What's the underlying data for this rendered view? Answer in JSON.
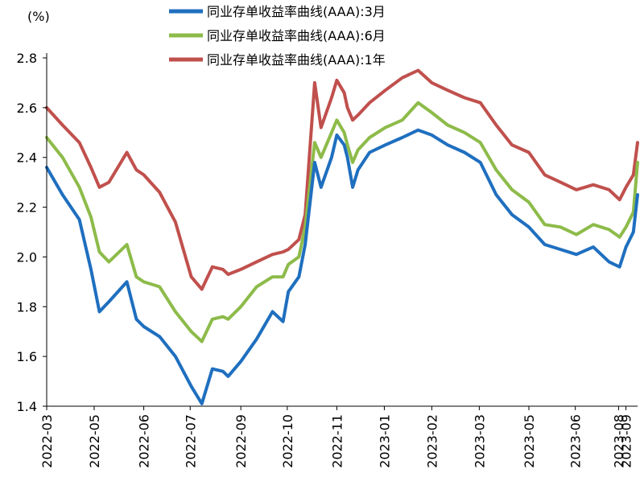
{
  "chart_data": {
    "type": "line",
    "title": "",
    "unit_label": "(%)",
    "xlabel": "",
    "ylabel": "(%)",
    "ylim": [
      1.4,
      2.8
    ],
    "yticks": [
      1.4,
      1.6,
      1.8,
      2.0,
      2.2,
      2.4,
      2.6,
      2.8
    ],
    "ytick_labels": [
      "1.4",
      "1.6",
      "1.8",
      "2.0",
      "2.2",
      "2.4",
      "2.6",
      "2.8"
    ],
    "x_start": "2022-03-01",
    "x_end": "2023-09-12",
    "xtick_labels": [
      "2022-03",
      "2022-05",
      "2022-06",
      "2022-07",
      "2022-09",
      "2022-10",
      "2022-11",
      "2023-01",
      "2023-02",
      "2023-03",
      "2023-05",
      "2023-06",
      "2023-08",
      "2023-09"
    ],
    "xtick_dates": [
      "2022-03-01",
      "2022-04-15",
      "2022-06-01",
      "2022-07-15",
      "2022-09-01",
      "2022-10-15",
      "2022-12-01",
      "2023-01-15",
      "2023-03-01",
      "2023-04-15",
      "2023-06-01",
      "2023-07-15",
      "2023-08-25",
      "2023-09-01"
    ],
    "grid": false,
    "legend_position": "top-center",
    "x": [
      "2022-03-01",
      "2022-03-16",
      "2022-04-01",
      "2022-04-12",
      "2022-04-20",
      "2022-04-29",
      "2022-05-16",
      "2022-05-25",
      "2022-06-01",
      "2022-06-16",
      "2022-07-01",
      "2022-07-16",
      "2022-07-26",
      "2022-08-05",
      "2022-08-15",
      "2022-08-20",
      "2022-09-01",
      "2022-09-16",
      "2022-10-01",
      "2022-10-11",
      "2022-10-16",
      "2022-10-26",
      "2022-11-01",
      "2022-11-10",
      "2022-11-16",
      "2022-11-26",
      "2022-12-01",
      "2022-12-08",
      "2022-12-11",
      "2022-12-16",
      "2022-12-21",
      "2023-01-01",
      "2023-01-16",
      "2023-02-01",
      "2023-02-16",
      "2023-03-01",
      "2023-03-16",
      "2023-04-01",
      "2023-04-16",
      "2023-05-01",
      "2023-05-16",
      "2023-06-01",
      "2023-06-16",
      "2023-07-01",
      "2023-07-16",
      "2023-08-01",
      "2023-08-16",
      "2023-08-26",
      "2023-09-01",
      "2023-09-08",
      "2023-09-12"
    ],
    "series": [
      {
        "name": "同业存单收益率曲线(AAA):3月",
        "color": "#1f6fbf",
        "values": [
          2.36,
          2.25,
          2.15,
          1.95,
          1.78,
          1.82,
          1.9,
          1.75,
          1.72,
          1.68,
          1.6,
          1.48,
          1.41,
          1.55,
          1.54,
          1.52,
          1.58,
          1.67,
          1.78,
          1.74,
          1.86,
          1.92,
          2.05,
          2.38,
          2.28,
          2.4,
          2.49,
          2.45,
          2.4,
          2.28,
          2.35,
          2.42,
          2.45,
          2.48,
          2.51,
          2.49,
          2.45,
          2.42,
          2.38,
          2.25,
          2.17,
          2.12,
          2.05,
          2.03,
          2.01,
          2.04,
          1.98,
          1.96,
          2.04,
          2.1,
          2.25
        ]
      },
      {
        "name": "同业存单收益率曲线(AAA):6月",
        "color": "#8dbb4a",
        "values": [
          2.48,
          2.4,
          2.28,
          2.16,
          2.02,
          1.98,
          2.05,
          1.92,
          1.9,
          1.88,
          1.78,
          1.7,
          1.66,
          1.75,
          1.76,
          1.75,
          1.8,
          1.88,
          1.92,
          1.92,
          1.97,
          2.0,
          2.12,
          2.46,
          2.4,
          2.5,
          2.55,
          2.5,
          2.45,
          2.38,
          2.43,
          2.48,
          2.52,
          2.55,
          2.62,
          2.58,
          2.53,
          2.5,
          2.46,
          2.35,
          2.27,
          2.22,
          2.13,
          2.12,
          2.09,
          2.13,
          2.11,
          2.08,
          2.12,
          2.18,
          2.38
        ]
      },
      {
        "name": "同业存单收益率曲线(AAA):1年",
        "color": "#c0504d",
        "values": [
          2.6,
          2.53,
          2.46,
          2.36,
          2.28,
          2.3,
          2.42,
          2.35,
          2.33,
          2.26,
          2.14,
          1.92,
          1.87,
          1.96,
          1.95,
          1.93,
          1.95,
          1.98,
          2.01,
          2.02,
          2.03,
          2.07,
          2.17,
          2.7,
          2.52,
          2.64,
          2.71,
          2.66,
          2.6,
          2.55,
          2.57,
          2.62,
          2.67,
          2.72,
          2.75,
          2.7,
          2.67,
          2.64,
          2.62,
          2.53,
          2.45,
          2.42,
          2.33,
          2.3,
          2.27,
          2.29,
          2.27,
          2.23,
          2.28,
          2.33,
          2.46
        ]
      }
    ]
  }
}
